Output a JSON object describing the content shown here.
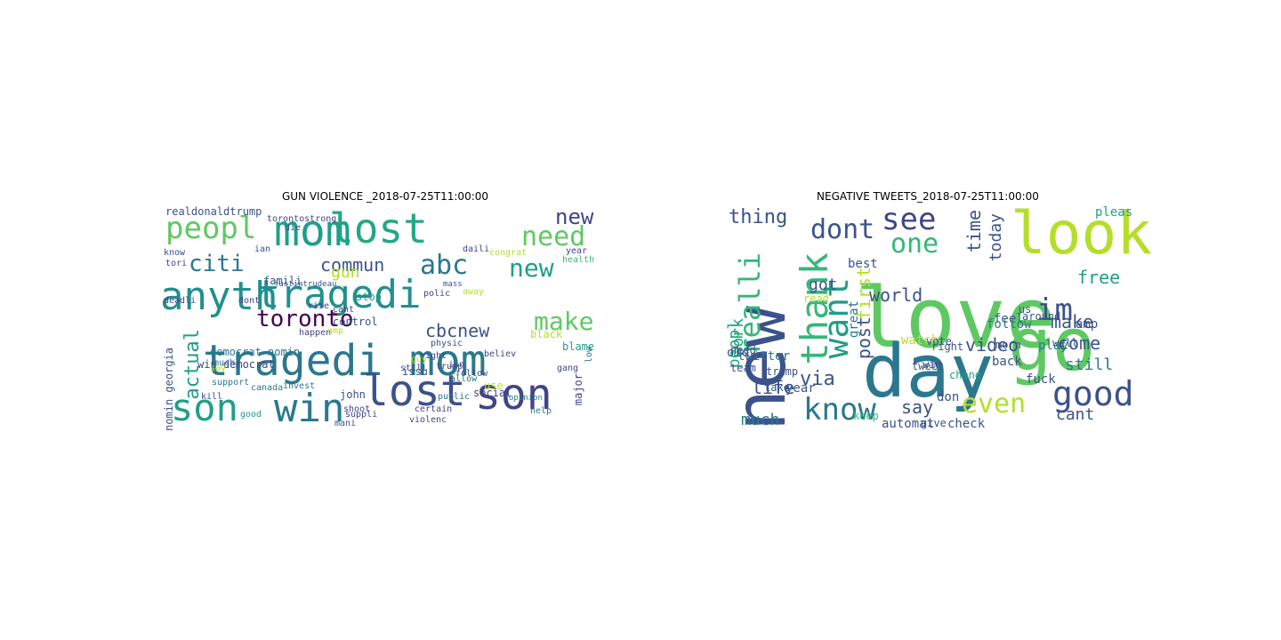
{
  "figure": {
    "left_title": "GUN VIOLENCE _2018-07-25T11:00:00",
    "right_title": "NEGATIVE TWEETS_2018-07-25T11:00:00"
  },
  "colors": {
    "teal": "#21908d",
    "dark_teal": "#2a788e",
    "blue": "#3b528b",
    "indigo": "#414487",
    "purple": "#440154",
    "green": "#35b779",
    "light_green": "#5ec962",
    "yellow_green": "#b5de2b",
    "lime": "#90d743",
    "cyan": "#1f9e89",
    "sea": "#22a884"
  },
  "left_cloud": [
    {
      "text": "anyth",
      "color": "teal"
    },
    {
      "text": "tragedi",
      "color": "teal"
    },
    {
      "text": "tragedi",
      "color": "dark_teal"
    },
    {
      "text": "mom",
      "color": "dark_teal"
    },
    {
      "text": "lost",
      "color": "sea"
    },
    {
      "text": "mom",
      "color": "cyan"
    },
    {
      "text": "lost",
      "color": "blue"
    },
    {
      "text": "son",
      "color": "indigo"
    },
    {
      "text": "son",
      "color": "cyan"
    },
    {
      "text": "win",
      "color": "dark_teal"
    },
    {
      "text": "peopl",
      "color": "light_green"
    },
    {
      "text": "toronto",
      "color": "purple"
    },
    {
      "text": "abc",
      "color": "dark_teal"
    },
    {
      "text": "new",
      "color": "cyan"
    },
    {
      "text": "need",
      "color": "light_green"
    },
    {
      "text": "new",
      "color": "indigo"
    },
    {
      "text": "make",
      "color": "light_green"
    },
    {
      "text": "citi",
      "color": "dark_teal"
    },
    {
      "text": "commun",
      "color": "blue"
    },
    {
      "text": "cbcnew",
      "color": "blue"
    },
    {
      "text": "gun",
      "color": "yellow_green"
    },
    {
      "text": "actual",
      "color": "cyan"
    },
    {
      "text": "realdonaldtrump",
      "color": "blue"
    },
    {
      "text": "democrat nomin",
      "color": "dark_teal"
    },
    {
      "text": "win democrat",
      "color": "indigo"
    },
    {
      "text": "nomin georgia",
      "color": "blue"
    },
    {
      "text": "control",
      "color": "blue"
    },
    {
      "text": "famili",
      "color": "blue"
    },
    {
      "text": "issu",
      "color": "blue"
    },
    {
      "text": "health",
      "color": "green"
    },
    {
      "text": "blame",
      "color": "cyan"
    },
    {
      "text": "social",
      "color": "indigo"
    },
    {
      "text": "john",
      "color": "blue"
    },
    {
      "text": "trump",
      "color": "indigo"
    },
    {
      "text": "support",
      "color": "dark_teal"
    },
    {
      "text": "invest",
      "color": "dark_teal"
    },
    {
      "text": "canada",
      "color": "dark_teal"
    },
    {
      "text": "kill",
      "color": "blue"
    },
    {
      "text": "much",
      "color": "dark_teal"
    },
    {
      "text": "good",
      "color": "cyan"
    },
    {
      "text": "shoot",
      "color": "indigo"
    },
    {
      "text": "certain",
      "color": "indigo"
    },
    {
      "text": "help",
      "color": "dark_teal"
    },
    {
      "text": "stop",
      "color": "cyan"
    },
    {
      "text": "polic",
      "color": "indigo"
    },
    {
      "text": "major",
      "color": "indigo"
    },
    {
      "text": "public",
      "color": "dark_teal"
    },
    {
      "text": "violenc",
      "color": "indigo"
    },
    {
      "text": "year",
      "color": "indigo"
    },
    {
      "text": "daili",
      "color": "indigo"
    },
    {
      "text": "happen",
      "color": "indigo"
    },
    {
      "text": "physic",
      "color": "blue"
    },
    {
      "text": "gang",
      "color": "indigo"
    },
    {
      "text": "congrat",
      "color": "yellow_green"
    },
    {
      "text": "dont",
      "color": "indigo"
    },
    {
      "text": "cant",
      "color": "indigo"
    },
    {
      "text": "use",
      "color": "yellow_green"
    },
    {
      "text": "follow",
      "color": "indigo"
    },
    {
      "text": "allow",
      "color": "dark_teal"
    },
    {
      "text": "believ",
      "color": "indigo"
    },
    {
      "text": "torontostrong",
      "color": "indigo"
    },
    {
      "text": "justintrudeau",
      "color": "blue"
    },
    {
      "text": "deadli",
      "color": "indigo"
    },
    {
      "text": "rise",
      "color": "indigo"
    },
    {
      "text": "know",
      "color": "blue"
    },
    {
      "text": "tori",
      "color": "indigo"
    },
    {
      "text": "die",
      "color": "blue"
    },
    {
      "text": "amp",
      "color": "yellow_green"
    },
    {
      "text": "right",
      "color": "indigo"
    },
    {
      "text": "isn",
      "color": "blue"
    },
    {
      "text": "guy",
      "color": "yellow_green"
    },
    {
      "text": "say",
      "color": "yellow_green"
    },
    {
      "text": "mani",
      "color": "blue"
    },
    {
      "text": "suppli",
      "color": "indigo"
    },
    {
      "text": "still",
      "color": "blue"
    },
    {
      "text": "opinion",
      "color": "dark_teal"
    },
    {
      "text": "black",
      "color": "yellow_green"
    },
    {
      "text": "mass",
      "color": "blue"
    },
    {
      "text": "ian",
      "color": "blue"
    },
    {
      "text": "away",
      "color": "yellow_green"
    },
    {
      "text": "low",
      "color": "dark_teal"
    }
  ],
  "right_cloud": [
    {
      "text": "new",
      "color": "blue"
    },
    {
      "text": "love",
      "color": "light_green"
    },
    {
      "text": "look",
      "color": "yellow_green"
    },
    {
      "text": "day",
      "color": "dark_teal"
    },
    {
      "text": "go",
      "color": "light_green"
    },
    {
      "text": "see",
      "color": "indigo"
    },
    {
      "text": "dont",
      "color": "blue"
    },
    {
      "text": "one",
      "color": "green"
    },
    {
      "text": "thank",
      "color": "green"
    },
    {
      "text": "want",
      "color": "cyan"
    },
    {
      "text": "im",
      "color": "blue"
    },
    {
      "text": "good",
      "color": "blue"
    },
    {
      "text": "know",
      "color": "dark_teal"
    },
    {
      "text": "even",
      "color": "yellow_green"
    },
    {
      "text": "realli",
      "color": "green"
    },
    {
      "text": "thing",
      "color": "blue"
    },
    {
      "text": "world",
      "color": "blue"
    },
    {
      "text": "video",
      "color": "blue"
    },
    {
      "text": "life",
      "color": "blue"
    },
    {
      "text": "via",
      "color": "blue"
    },
    {
      "text": "much",
      "color": "dark_teal"
    },
    {
      "text": "make",
      "color": "blue"
    },
    {
      "text": "come",
      "color": "blue"
    },
    {
      "text": "free",
      "color": "cyan"
    },
    {
      "text": "cant",
      "color": "blue"
    },
    {
      "text": "still",
      "color": "dark_teal"
    },
    {
      "text": "time",
      "color": "blue"
    },
    {
      "text": "today",
      "color": "blue"
    },
    {
      "text": "got",
      "color": "blue"
    },
    {
      "text": "first",
      "color": "yellow_green"
    },
    {
      "text": "post",
      "color": "blue"
    },
    {
      "text": "peopl",
      "color": "sea"
    },
    {
      "text": "work",
      "color": "sea"
    },
    {
      "text": "watch",
      "color": "yellow_green"
    },
    {
      "text": "say",
      "color": "blue"
    },
    {
      "text": "automat",
      "color": "blue"
    },
    {
      "text": "check",
      "color": "blue"
    },
    {
      "text": "keep",
      "color": "green"
    },
    {
      "text": "back",
      "color": "blue"
    },
    {
      "text": "feel",
      "color": "blue"
    },
    {
      "text": "amp",
      "color": "blue"
    },
    {
      "text": "play",
      "color": "dark_teal"
    },
    {
      "text": "fuck",
      "color": "blue"
    },
    {
      "text": "around",
      "color": "blue"
    },
    {
      "text": "well",
      "color": "blue"
    },
    {
      "text": "follow",
      "color": "dark_teal"
    },
    {
      "text": "morn",
      "color": "blue"
    },
    {
      "text": "best",
      "color": "blue"
    },
    {
      "text": "pleas",
      "color": "cyan"
    },
    {
      "text": "twitter",
      "color": "dark_teal"
    },
    {
      "text": "trump",
      "color": "blue"
    },
    {
      "text": "take",
      "color": "blue"
    },
    {
      "text": "year",
      "color": "blue"
    },
    {
      "text": "vote",
      "color": "blue"
    },
    {
      "text": "right",
      "color": "blue"
    },
    {
      "text": "tweet",
      "color": "blue"
    },
    {
      "text": "read",
      "color": "yellow_green"
    },
    {
      "text": "old",
      "color": "blue"
    },
    {
      "text": "team",
      "color": "blue"
    },
    {
      "text": "need",
      "color": "blue"
    },
    {
      "text": "win",
      "color": "blue"
    },
    {
      "text": "don",
      "color": "blue"
    },
    {
      "text": "us",
      "color": "blue"
    },
    {
      "text": "great",
      "color": "dark_teal"
    },
    {
      "text": "chang",
      "color": "cyan"
    },
    {
      "text": "give",
      "color": "blue"
    }
  ]
}
